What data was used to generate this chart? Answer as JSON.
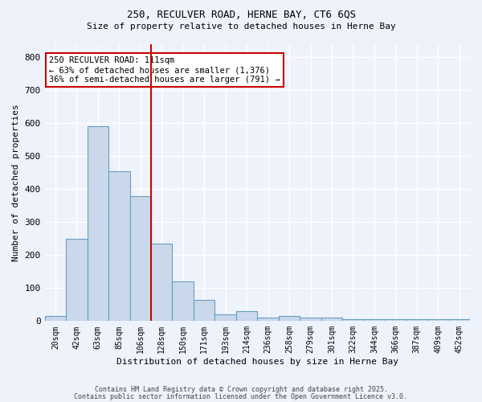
{
  "title1": "250, RECULVER ROAD, HERNE BAY, CT6 6QS",
  "title2": "Size of property relative to detached houses in Herne Bay",
  "xlabel": "Distribution of detached houses by size in Herne Bay",
  "ylabel": "Number of detached properties",
  "bar_values": [
    15,
    250,
    590,
    455,
    380,
    235,
    120,
    65,
    20,
    30,
    10,
    15,
    10,
    10,
    5,
    5,
    5,
    5,
    5,
    5
  ],
  "bin_labels": [
    "20sqm",
    "42sqm",
    "63sqm",
    "85sqm",
    "106sqm",
    "128sqm",
    "150sqm",
    "171sqm",
    "193sqm",
    "214sqm",
    "236sqm",
    "258sqm",
    "279sqm",
    "301sqm",
    "322sqm",
    "344sqm",
    "366sqm",
    "387sqm",
    "409sqm",
    "452sqm"
  ],
  "bar_color": "#c9d9eb",
  "bar_edge_color": "#6b9dc2",
  "background_color": "#eef2fb",
  "grid_color": "#ffffff",
  "vline_x": 4.5,
  "vline_color": "#cc0000",
  "annotation_text": "250 RECULVER ROAD: 111sqm\n← 63% of detached houses are smaller (1,376)\n36% of semi-detached houses are larger (791) →",
  "annotation_box_color": "#cc0000",
  "ylim": [
    0,
    840
  ],
  "yticks": [
    0,
    100,
    200,
    300,
    400,
    500,
    600,
    700,
    800
  ],
  "footer1": "Contains HM Land Registry data © Crown copyright and database right 2025.",
  "footer2": "Contains public sector information licensed under the Open Government Licence v3.0."
}
